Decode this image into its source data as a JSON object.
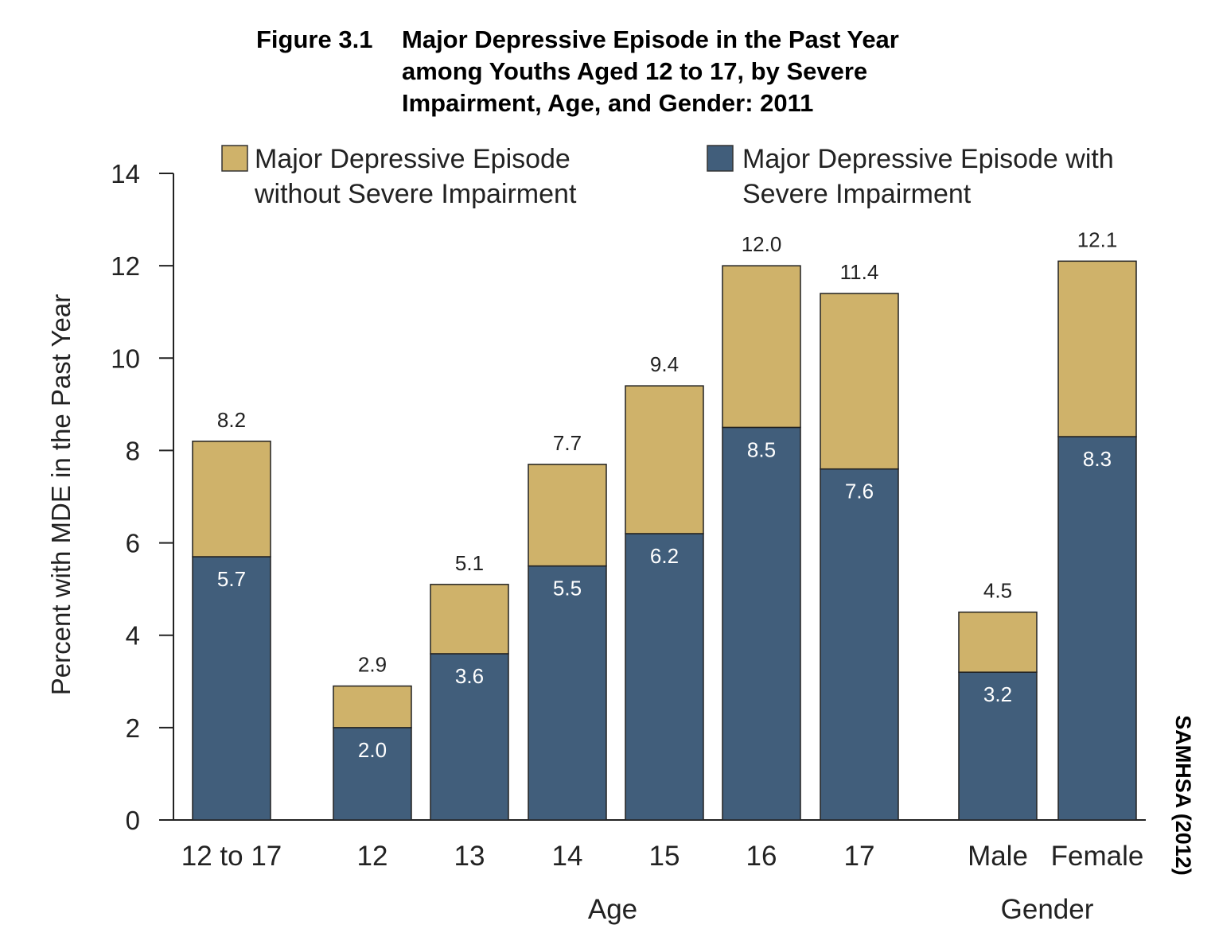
{
  "chart_data": {
    "type": "bar",
    "stacked": true,
    "title_number": "Figure 3.1",
    "title_lines": [
      "Major Depressive Episode in the Past Year",
      "among Youths Aged 12 to 17, by Severe",
      "Impairment, Age, and Gender: 2011"
    ],
    "ylabel": "Percent with MDE in the Past Year",
    "ylim": [
      0,
      14
    ],
    "yticks": [
      0,
      2,
      4,
      6,
      8,
      10,
      12,
      14
    ],
    "categories": [
      "12 to 17",
      "12",
      "13",
      "14",
      "15",
      "16",
      "17",
      "Male",
      "Female"
    ],
    "groups": [
      {
        "label": "Age",
        "categories": [
          "12",
          "13",
          "14",
          "15",
          "16",
          "17"
        ]
      },
      {
        "label": "Gender",
        "categories": [
          "Male",
          "Female"
        ]
      }
    ],
    "totals": [
      "8.2",
      "2.9",
      "5.1",
      "7.7",
      "9.4",
      "12.0",
      "11.4",
      "4.5",
      "12.1"
    ],
    "series": [
      {
        "name": "Major Depressive Episode with Severe Impairment",
        "legend_lines": [
          "Major Depressive Episode with",
          "Severe Impairment"
        ],
        "color": "#415E7B",
        "values": [
          5.7,
          2.0,
          3.6,
          5.5,
          6.2,
          8.5,
          7.6,
          3.2,
          8.3
        ]
      },
      {
        "name": "Major Depressive Episode without Severe Impairment",
        "legend_lines": [
          "Major Depressive Episode",
          "without Severe Impairment"
        ],
        "color": "#CFB26A",
        "values": [
          2.5,
          0.9,
          1.5,
          2.2,
          3.2,
          3.5,
          3.8,
          1.3,
          3.8
        ]
      }
    ],
    "legend_position": "top",
    "grid": false
  },
  "source": "SAMHSA (2012)"
}
